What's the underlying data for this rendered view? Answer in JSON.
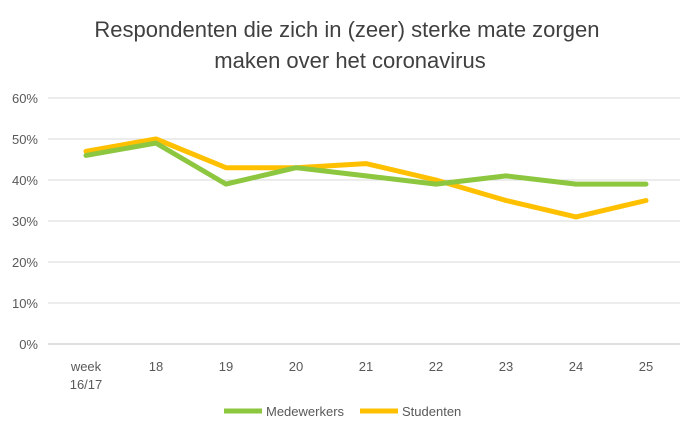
{
  "chart_data": {
    "type": "line",
    "title": "Respondenten die zich in (zeer) sterke mate zorgen maken over het coronavirus",
    "title_lines": [
      "Respondenten die zich in (zeer) sterke mate zorgen",
      "maken over het coronavirus"
    ],
    "categories": [
      "week 16/17",
      "18",
      "19",
      "20",
      "21",
      "22",
      "23",
      "24",
      "25"
    ],
    "category_lines": [
      [
        "week",
        "16/17"
      ],
      [
        "18"
      ],
      [
        "19"
      ],
      [
        "20"
      ],
      [
        "21"
      ],
      [
        "22"
      ],
      [
        "23"
      ],
      [
        "24"
      ],
      [
        "25"
      ]
    ],
    "y_ticks": [
      "0%",
      "10%",
      "20%",
      "30%",
      "40%",
      "50%",
      "60%"
    ],
    "ylim": [
      0,
      60
    ],
    "xlabel": "",
    "ylabel": "",
    "grid": true,
    "legend_position": "bottom",
    "series": [
      {
        "name": "Medewerkers",
        "color": "#8DC63F",
        "values": [
          46,
          49,
          39,
          43,
          41,
          39,
          41,
          39,
          39
        ]
      },
      {
        "name": "Studenten",
        "color": "#FFC000",
        "values": [
          47,
          50,
          43,
          43,
          44,
          40,
          35,
          31,
          35
        ]
      }
    ]
  }
}
